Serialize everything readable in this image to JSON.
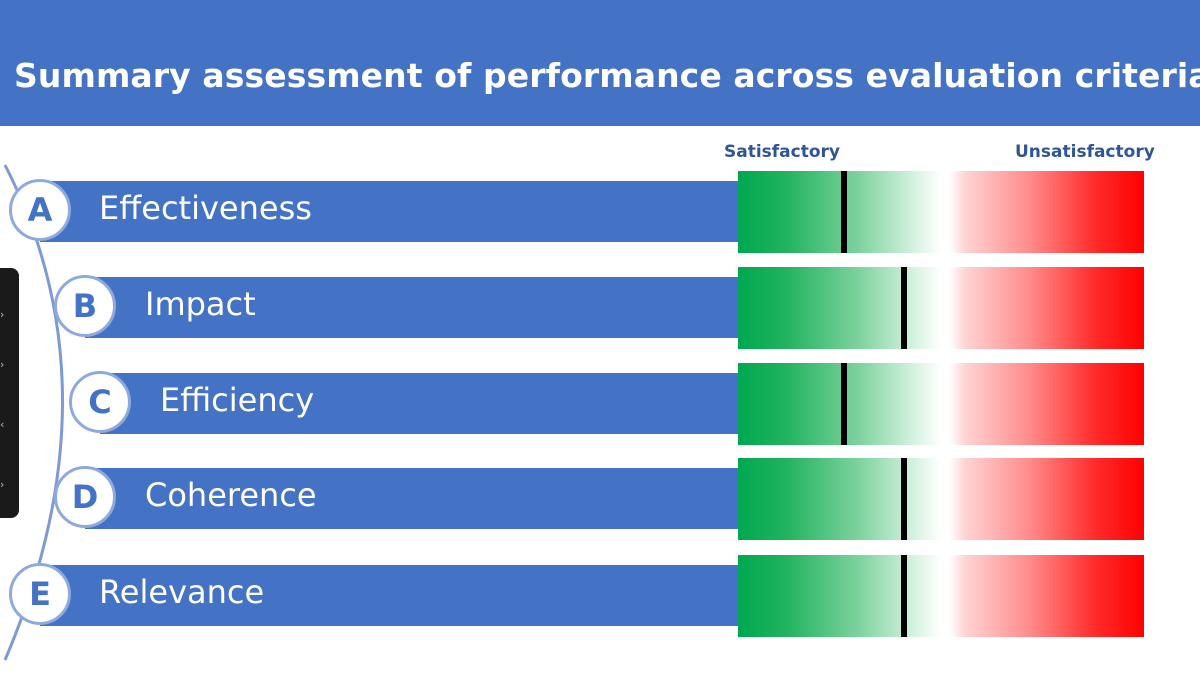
{
  "title": "Summary assessment of performance across evaluation criteria",
  "scale": {
    "left_label": "Satisfactory",
    "right_label": "Unsatisfactory"
  },
  "colors": {
    "accent": "#4472c4",
    "good": "#00a84f",
    "bad": "#ff0000"
  },
  "criteria": [
    {
      "letter": "A",
      "label": "Effectiveness",
      "rating": 0.26
    },
    {
      "letter": "B",
      "label": "Impact",
      "rating": 0.41
    },
    {
      "letter": "C",
      "label": "Efficiency",
      "rating": 0.26
    },
    {
      "letter": "D",
      "label": "Coherence",
      "rating": 0.41
    },
    {
      "letter": "E",
      "label": "Relevance",
      "rating": 0.41
    }
  ]
}
